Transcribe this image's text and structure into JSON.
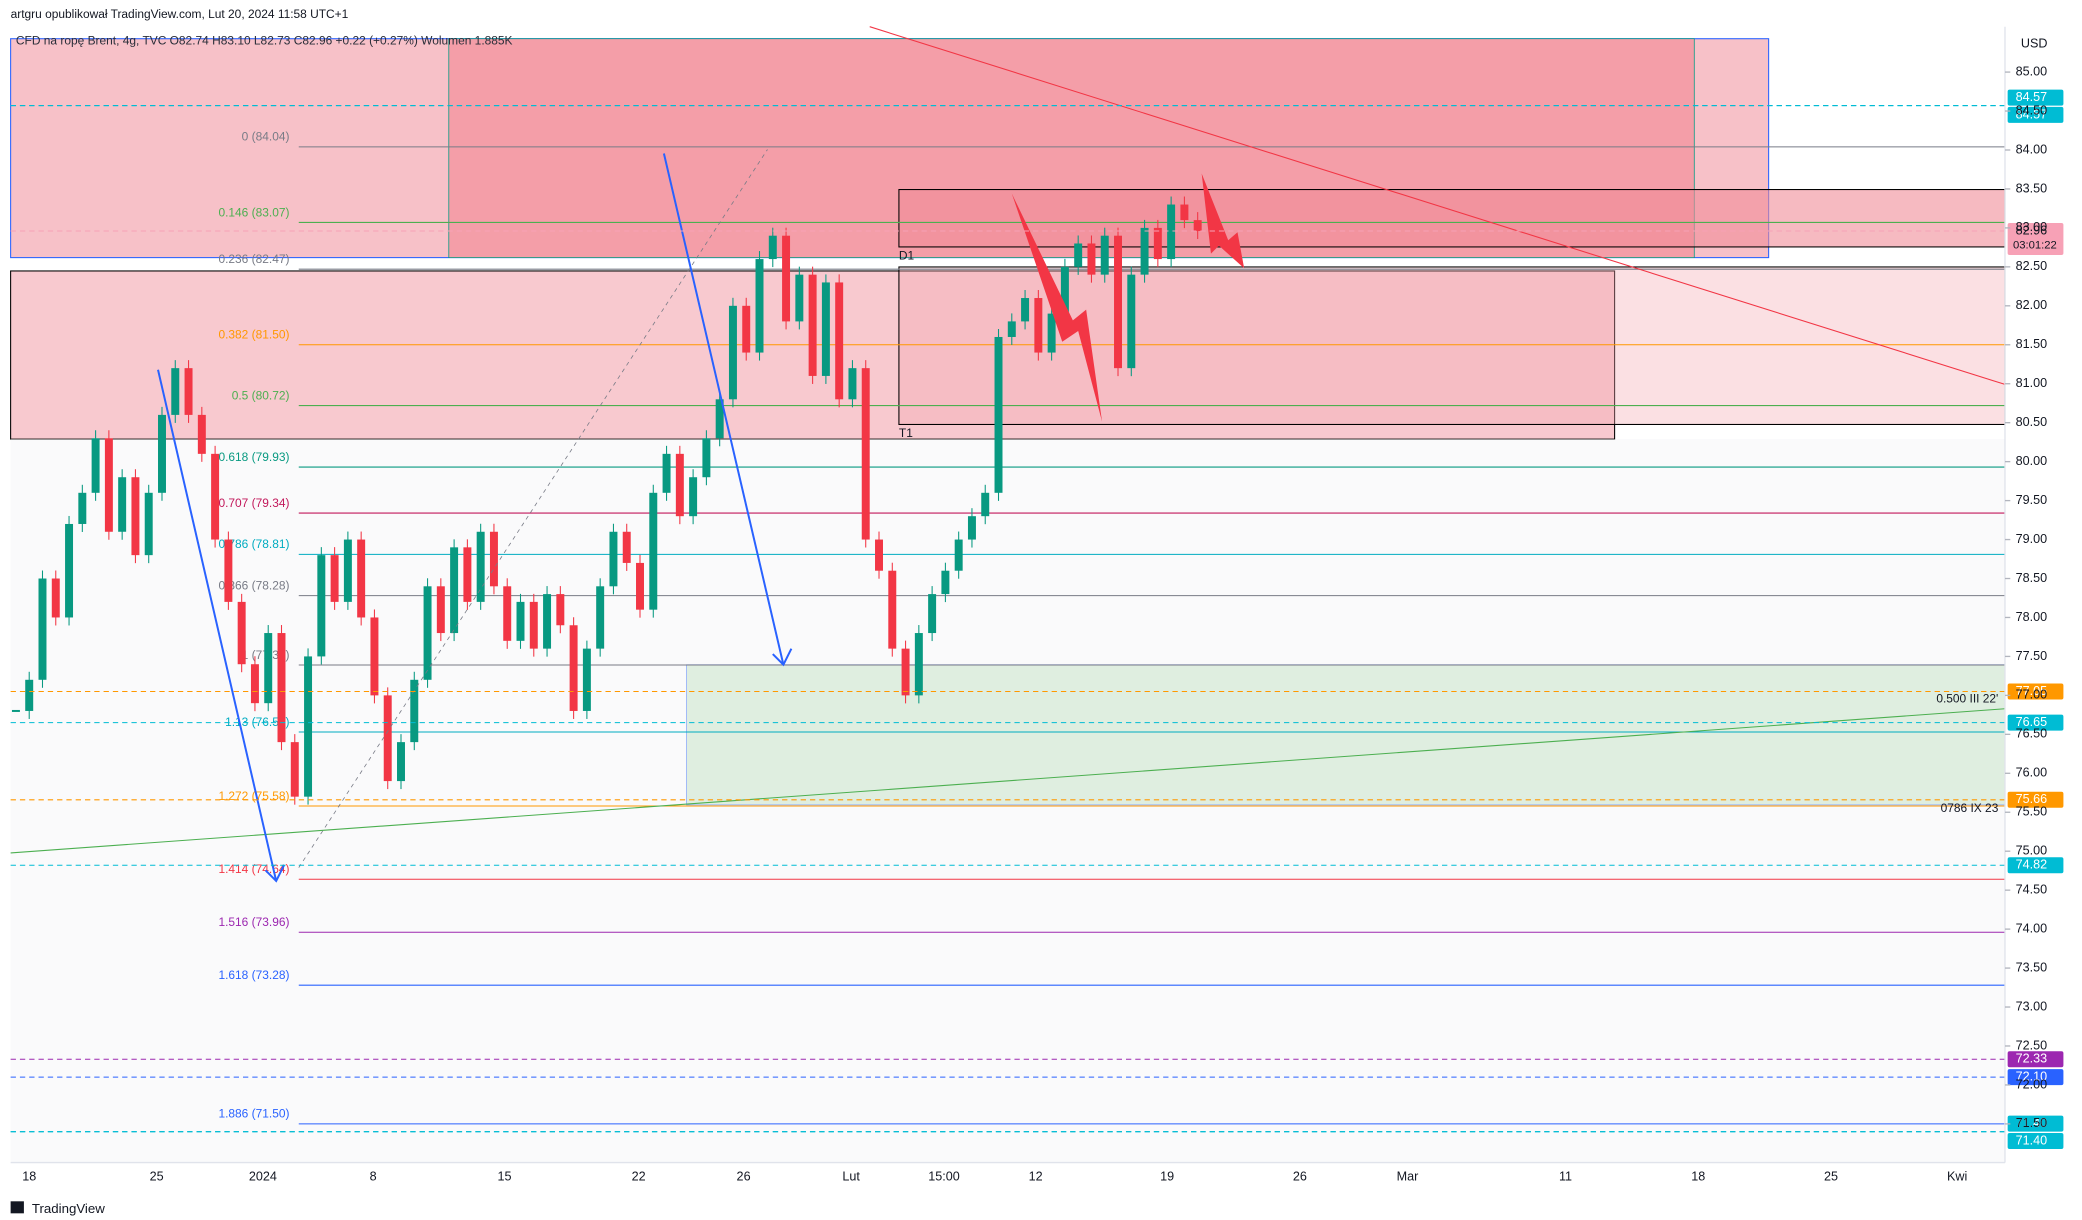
{
  "header": {
    "author_line": "artgru opublikował TradingView.com, Lut 20, 2024 11:58 UTC+1",
    "legend": "CFD na ropę Brent, 4g, TVC  O82.74 H83.10 L82.73 C82.96 +0.22 (+0.27%) Wolumen 1.885K",
    "currency": "USD"
  },
  "footer": {
    "brand": "TradingView"
  },
  "price_axis": {
    "ylim": [
      71.1,
      85.3
    ],
    "ticks": [
      {
        "value": 85,
        "label": "85.00"
      },
      {
        "value": 84.5,
        "label": "84.50"
      },
      {
        "value": 84,
        "label": "84.00"
      },
      {
        "value": 83.5,
        "label": "83.50"
      },
      {
        "value": 83,
        "label": "83.00"
      },
      {
        "value": 82.5,
        "label": "82.50"
      },
      {
        "value": 82,
        "label": "82.00"
      },
      {
        "value": 81.5,
        "label": "81.50"
      },
      {
        "value": 81,
        "label": "81.00"
      },
      {
        "value": 80.5,
        "label": "80.50"
      },
      {
        "value": 80,
        "label": "80.00"
      },
      {
        "value": 79.5,
        "label": "79.50"
      },
      {
        "value": 79,
        "label": "79.00"
      },
      {
        "value": 78.5,
        "label": "78.50"
      },
      {
        "value": 78,
        "label": "78.00"
      },
      {
        "value": 77.5,
        "label": "77.50"
      },
      {
        "value": 77,
        "label": "77.00"
      },
      {
        "value": 76.5,
        "label": "76.50"
      },
      {
        "value": 76,
        "label": "76.00"
      },
      {
        "value": 75.5,
        "label": "75.50"
      },
      {
        "value": 75,
        "label": "75.00"
      },
      {
        "value": 74.5,
        "label": "74.50"
      },
      {
        "value": 74,
        "label": "74.00"
      },
      {
        "value": 73.5,
        "label": "73.50"
      },
      {
        "value": 73,
        "label": "73.00"
      },
      {
        "value": 72.5,
        "label": "72.50"
      },
      {
        "value": 72,
        "label": "72.00"
      },
      {
        "value": 71.5,
        "label": "71.50"
      }
    ],
    "tags": [
      {
        "value": 84.57,
        "label": "84.57",
        "color": "#00bcd4"
      },
      {
        "value": 84.57,
        "label": "84.57",
        "color": "#00bcd4"
      },
      {
        "value": 82.96,
        "label": "82.96",
        "countdown": "03:01:22",
        "color": "#f7a1b6"
      },
      {
        "value": 77.05,
        "label": "77.05",
        "color": "#ff9800"
      },
      {
        "value": 76.65,
        "label": "76.65",
        "color": "#00bcd4"
      },
      {
        "value": 75.66,
        "label": "75.66",
        "color": "#ff9800"
      },
      {
        "value": 74.82,
        "label": "74.82",
        "color": "#00bcd4"
      },
      {
        "value": 72.33,
        "label": "72.33",
        "color": "#9c27b0"
      },
      {
        "value": 72.1,
        "label": "72.10",
        "color": "#2962ff"
      },
      {
        "value": 71.4,
        "label": "71.40",
        "color": "#00bcd4"
      },
      {
        "value": 71.4,
        "label": "71.40",
        "color": "#00bcd4"
      }
    ]
  },
  "time_axis": {
    "labels": [
      "18",
      "25",
      "2024",
      "8",
      "15",
      "22",
      "26",
      "Lut",
      "15:00",
      "12",
      "19",
      "26",
      "Mar",
      "11",
      "18",
      "25",
      "Kwi"
    ]
  },
  "fib_levels": [
    {
      "label": "0 (84.04)",
      "value": 84.04,
      "color": "#787b86"
    },
    {
      "label": "0.146 (83.07)",
      "value": 83.07,
      "color": "#4caf50"
    },
    {
      "label": "0.236 (82.47)",
      "value": 82.47,
      "color": "#787b86"
    },
    {
      "label": "0.382 (81.50)",
      "value": 81.5,
      "color": "#ff9800"
    },
    {
      "label": "0.5 (80.72)",
      "value": 80.72,
      "color": "#4caf50"
    },
    {
      "label": "0.618 (79.93)",
      "value": 79.93,
      "color": "#089981"
    },
    {
      "label": "0.707 (79.34)",
      "value": 79.34,
      "color": "#c2185b"
    },
    {
      "label": "0.786 (78.81)",
      "value": 78.81,
      "color": "#00acc1"
    },
    {
      "label": "0.866 (78.28)",
      "value": 78.28,
      "color": "#787b86"
    },
    {
      "label": "1 (77.39)",
      "value": 77.39,
      "color": "#787b86"
    },
    {
      "label": "1.13 (76.53)",
      "value": 76.53,
      "color": "#00acc1"
    },
    {
      "label": "1.272 (75.58)",
      "value": 75.58,
      "color": "#ff9800"
    },
    {
      "label": "1.414 (74.64)",
      "value": 74.64,
      "color": "#f23645"
    },
    {
      "label": "1.516 (73.96)",
      "value": 73.96,
      "color": "#9c27b0"
    },
    {
      "label": "1.618 (73.28)",
      "value": 73.28,
      "color": "#2962ff"
    },
    {
      "label": "1.886 (71.50)",
      "value": 71.5,
      "color": "#2962ff"
    }
  ],
  "annotations": {
    "d1": "D1",
    "t1": "T1",
    "wave_a": "0.500 III 22'",
    "wave_b": "0786 IX 23"
  },
  "closes": [
    76.8,
    77.2,
    78.5,
    78.0,
    79.2,
    79.6,
    80.3,
    79.1,
    79.8,
    78.8,
    79.6,
    80.6,
    81.2,
    80.6,
    80.1,
    79.0,
    78.2,
    77.4,
    76.9,
    77.8,
    76.4,
    75.7,
    77.5,
    78.8,
    78.2,
    79.0,
    78.0,
    77.0,
    75.9,
    76.4,
    77.2,
    78.4,
    77.8,
    78.9,
    78.2,
    79.1,
    78.4,
    77.7,
    78.2,
    77.6,
    78.3,
    77.9,
    76.8,
    77.6,
    78.4,
    79.1,
    78.7,
    78.1,
    79.6,
    80.1,
    79.3,
    79.8,
    80.3,
    80.8,
    82.0,
    81.4,
    82.6,
    82.9,
    81.8,
    82.4,
    81.1,
    82.3,
    80.8,
    81.2,
    79.0,
    78.6,
    77.6,
    77.0,
    77.8,
    78.3,
    78.6,
    79.0,
    79.3,
    79.6,
    81.6,
    81.8,
    82.1,
    81.4,
    81.9,
    82.5,
    82.8,
    82.4,
    82.9,
    81.2,
    82.4,
    83.0,
    82.6,
    83.3,
    83.1,
    82.96
  ]
}
